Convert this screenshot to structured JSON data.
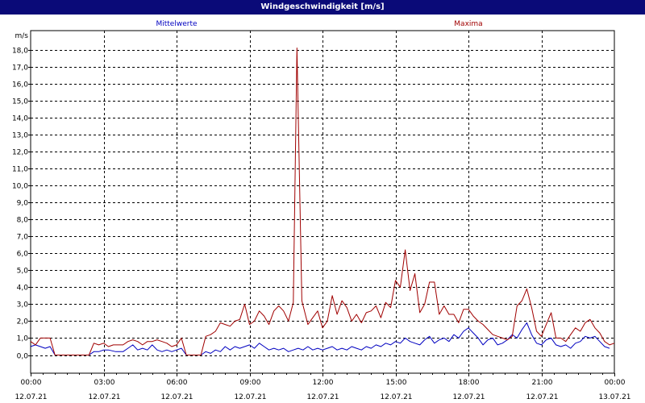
{
  "window": {
    "title": "Windgeschwindigkeit [m/s]"
  },
  "chart_data": {
    "type": "line",
    "title": "Windgeschwindigkeit [m/s]",
    "ylabel": "m/s",
    "ylim": [
      -1,
      19
    ],
    "yticks": [
      "0,0",
      "1,0",
      "2,0",
      "3,0",
      "4,0",
      "5,0",
      "6,0",
      "7,0",
      "8,0",
      "9,0",
      "10,0",
      "11,0",
      "12,0",
      "13,0",
      "14,0",
      "15,0",
      "16,0",
      "17,0",
      "18,0"
    ],
    "xlim_hours": [
      0,
      24
    ],
    "xticks": [
      {
        "time": "00:00",
        "date": "12.07.21"
      },
      {
        "time": "03:00",
        "date": "12.07.21"
      },
      {
        "time": "06:00",
        "date": "12.07.21"
      },
      {
        "time": "09:00",
        "date": "12.07.21"
      },
      {
        "time": "12:00",
        "date": "12.07.21"
      },
      {
        "time": "15:00",
        "date": "12.07.21"
      },
      {
        "time": "18:00",
        "date": "12.07.21"
      },
      {
        "time": "21:00",
        "date": "12.07.21"
      },
      {
        "time": "00:00",
        "date": "13.07.21"
      }
    ],
    "grid": true,
    "legend_position": "top",
    "series": [
      {
        "name": "Mittelwerte",
        "color": "#0000c0",
        "points": [
          [
            0,
            0.5
          ],
          [
            0.2,
            0.6
          ],
          [
            0.4,
            0.5
          ],
          [
            0.6,
            0.4
          ],
          [
            0.8,
            0.5
          ],
          [
            1,
            0.0
          ],
          [
            1.5,
            0.0
          ],
          [
            2,
            0.0
          ],
          [
            2.4,
            0.0
          ],
          [
            2.6,
            0.2
          ],
          [
            2.8,
            0.2
          ],
          [
            3,
            0.3
          ],
          [
            3.2,
            0.3
          ],
          [
            3.5,
            0.2
          ],
          [
            3.8,
            0.2
          ],
          [
            4,
            0.4
          ],
          [
            4.2,
            0.6
          ],
          [
            4.4,
            0.3
          ],
          [
            4.6,
            0.4
          ],
          [
            4.8,
            0.3
          ],
          [
            5,
            0.6
          ],
          [
            5.2,
            0.3
          ],
          [
            5.4,
            0.2
          ],
          [
            5.6,
            0.3
          ],
          [
            5.8,
            0.2
          ],
          [
            6,
            0.3
          ],
          [
            6.2,
            0.4
          ],
          [
            6.4,
            0.0
          ],
          [
            6.8,
            0.0
          ],
          [
            7,
            0.0
          ],
          [
            7.2,
            0.2
          ],
          [
            7.4,
            0.1
          ],
          [
            7.6,
            0.3
          ],
          [
            7.8,
            0.2
          ],
          [
            8,
            0.5
          ],
          [
            8.2,
            0.3
          ],
          [
            8.4,
            0.5
          ],
          [
            8.6,
            0.4
          ],
          [
            8.8,
            0.5
          ],
          [
            9,
            0.6
          ],
          [
            9.2,
            0.4
          ],
          [
            9.4,
            0.7
          ],
          [
            9.6,
            0.5
          ],
          [
            9.8,
            0.3
          ],
          [
            10,
            0.4
          ],
          [
            10.2,
            0.3
          ],
          [
            10.4,
            0.4
          ],
          [
            10.6,
            0.2
          ],
          [
            10.8,
            0.3
          ],
          [
            11,
            0.4
          ],
          [
            11.2,
            0.3
          ],
          [
            11.4,
            0.5
          ],
          [
            11.6,
            0.3
          ],
          [
            11.8,
            0.4
          ],
          [
            12,
            0.3
          ],
          [
            12.2,
            0.4
          ],
          [
            12.4,
            0.5
          ],
          [
            12.6,
            0.3
          ],
          [
            12.8,
            0.4
          ],
          [
            13,
            0.3
          ],
          [
            13.2,
            0.5
          ],
          [
            13.4,
            0.4
          ],
          [
            13.6,
            0.3
          ],
          [
            13.8,
            0.5
          ],
          [
            14,
            0.4
          ],
          [
            14.2,
            0.6
          ],
          [
            14.4,
            0.5
          ],
          [
            14.6,
            0.7
          ],
          [
            14.8,
            0.6
          ],
          [
            15,
            0.8
          ],
          [
            15.2,
            0.7
          ],
          [
            15.4,
            1.0
          ],
          [
            15.6,
            0.8
          ],
          [
            15.8,
            0.7
          ],
          [
            16,
            0.6
          ],
          [
            16.2,
            0.9
          ],
          [
            16.4,
            1.1
          ],
          [
            16.6,
            0.7
          ],
          [
            16.8,
            0.9
          ],
          [
            17,
            1.0
          ],
          [
            17.2,
            0.8
          ],
          [
            17.4,
            1.2
          ],
          [
            17.6,
            1.0
          ],
          [
            17.8,
            1.4
          ],
          [
            18,
            1.6
          ],
          [
            18.2,
            1.3
          ],
          [
            18.4,
            1.0
          ],
          [
            18.6,
            0.6
          ],
          [
            18.8,
            0.9
          ],
          [
            19,
            1.0
          ],
          [
            19.2,
            0.6
          ],
          [
            19.4,
            0.7
          ],
          [
            19.6,
            0.9
          ],
          [
            19.8,
            1.2
          ],
          [
            20,
            1.0
          ],
          [
            20.2,
            1.5
          ],
          [
            20.4,
            1.9
          ],
          [
            20.6,
            1.2
          ],
          [
            20.8,
            0.7
          ],
          [
            21,
            0.6
          ],
          [
            21.2,
            0.9
          ],
          [
            21.4,
            1.0
          ],
          [
            21.6,
            0.6
          ],
          [
            21.8,
            0.5
          ],
          [
            22,
            0.6
          ],
          [
            22.2,
            0.4
          ],
          [
            22.4,
            0.7
          ],
          [
            22.6,
            0.8
          ],
          [
            22.8,
            1.1
          ],
          [
            23,
            1.0
          ],
          [
            23.2,
            1.1
          ],
          [
            23.4,
            0.8
          ],
          [
            23.6,
            0.5
          ],
          [
            23.8,
            0.4
          ]
        ]
      },
      {
        "name": "Maxima",
        "color": "#a00000",
        "points": [
          [
            0,
            0.8
          ],
          [
            0.2,
            0.6
          ],
          [
            0.4,
            1.0
          ],
          [
            0.6,
            1.0
          ],
          [
            0.8,
            1.0
          ],
          [
            1,
            0.0
          ],
          [
            1.5,
            0.0
          ],
          [
            2,
            0.0
          ],
          [
            2.4,
            0.0
          ],
          [
            2.6,
            0.7
          ],
          [
            2.8,
            0.6
          ],
          [
            3,
            0.7
          ],
          [
            3.2,
            0.5
          ],
          [
            3.4,
            0.6
          ],
          [
            3.6,
            0.6
          ],
          [
            3.8,
            0.6
          ],
          [
            4,
            0.8
          ],
          [
            4.2,
            0.9
          ],
          [
            4.4,
            0.8
          ],
          [
            4.6,
            0.6
          ],
          [
            4.8,
            0.8
          ],
          [
            5,
            0.8
          ],
          [
            5.2,
            0.9
          ],
          [
            5.4,
            0.8
          ],
          [
            5.6,
            0.7
          ],
          [
            5.8,
            0.5
          ],
          [
            6,
            0.6
          ],
          [
            6.2,
            1.0
          ],
          [
            6.4,
            0.0
          ],
          [
            6.8,
            0.0
          ],
          [
            7,
            0.0
          ],
          [
            7.2,
            1.1
          ],
          [
            7.4,
            1.2
          ],
          [
            7.6,
            1.4
          ],
          [
            7.8,
            1.9
          ],
          [
            8,
            1.8
          ],
          [
            8.2,
            1.7
          ],
          [
            8.4,
            2.0
          ],
          [
            8.6,
            2.1
          ],
          [
            8.8,
            3.0
          ],
          [
            9,
            1.8
          ],
          [
            9.2,
            2.0
          ],
          [
            9.4,
            2.6
          ],
          [
            9.6,
            2.3
          ],
          [
            9.8,
            1.8
          ],
          [
            10,
            2.6
          ],
          [
            10.2,
            2.9
          ],
          [
            10.4,
            2.6
          ],
          [
            10.6,
            2.0
          ],
          [
            10.8,
            3.1
          ],
          [
            10.95,
            18.1
          ],
          [
            11.15,
            3.2
          ],
          [
            11.4,
            1.8
          ],
          [
            11.6,
            2.2
          ],
          [
            11.8,
            2.6
          ],
          [
            12,
            1.6
          ],
          [
            12.2,
            2.0
          ],
          [
            12.4,
            3.5
          ],
          [
            12.6,
            2.4
          ],
          [
            12.8,
            3.2
          ],
          [
            13,
            2.8
          ],
          [
            13.2,
            2.0
          ],
          [
            13.4,
            2.4
          ],
          [
            13.6,
            1.9
          ],
          [
            13.8,
            2.5
          ],
          [
            14,
            2.6
          ],
          [
            14.2,
            2.9
          ],
          [
            14.4,
            2.2
          ],
          [
            14.6,
            3.1
          ],
          [
            14.8,
            2.8
          ],
          [
            15,
            4.4
          ],
          [
            15.2,
            4.0
          ],
          [
            15.4,
            6.2
          ],
          [
            15.6,
            3.8
          ],
          [
            15.8,
            4.8
          ],
          [
            16,
            2.5
          ],
          [
            16.2,
            3.0
          ],
          [
            16.4,
            4.3
          ],
          [
            16.6,
            4.3
          ],
          [
            16.8,
            2.4
          ],
          [
            17,
            2.9
          ],
          [
            17.2,
            2.4
          ],
          [
            17.4,
            2.4
          ],
          [
            17.6,
            1.9
          ],
          [
            17.8,
            2.7
          ],
          [
            18,
            2.7
          ],
          [
            18.2,
            2.3
          ],
          [
            18.4,
            2.0
          ],
          [
            18.6,
            1.8
          ],
          [
            18.8,
            1.5
          ],
          [
            19,
            1.2
          ],
          [
            19.2,
            1.1
          ],
          [
            19.4,
            1.0
          ],
          [
            19.6,
            0.9
          ],
          [
            19.8,
            1.1
          ],
          [
            20,
            2.9
          ],
          [
            20.2,
            3.2
          ],
          [
            20.4,
            3.9
          ],
          [
            20.6,
            2.8
          ],
          [
            20.8,
            1.4
          ],
          [
            21,
            1.1
          ],
          [
            21.2,
            1.8
          ],
          [
            21.4,
            2.5
          ],
          [
            21.6,
            1.0
          ],
          [
            21.8,
            1.0
          ],
          [
            22,
            0.8
          ],
          [
            22.2,
            1.2
          ],
          [
            22.4,
            1.6
          ],
          [
            22.6,
            1.4
          ],
          [
            22.8,
            1.9
          ],
          [
            23,
            2.1
          ],
          [
            23.2,
            1.6
          ],
          [
            23.4,
            1.3
          ],
          [
            23.6,
            0.8
          ],
          [
            23.8,
            0.6
          ],
          [
            24,
            0.7
          ]
        ]
      }
    ]
  }
}
